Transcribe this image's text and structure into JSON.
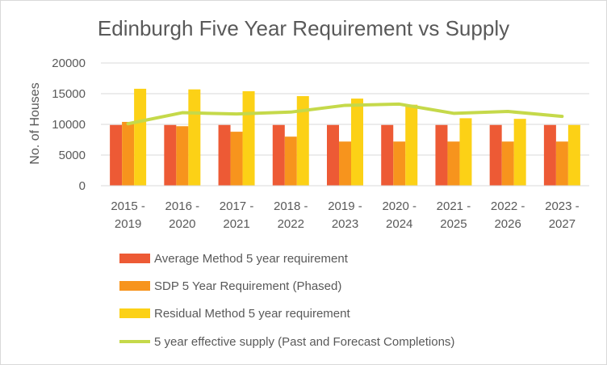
{
  "chart_data": {
    "type": "bar",
    "title": "Edinburgh Five Year Requirement vs Supply",
    "xlabel": "",
    "ylabel": "No. of Houses",
    "ylim": [
      0,
      20000
    ],
    "yticks": [
      0,
      5000,
      10000,
      15000,
      20000
    ],
    "grid": true,
    "legend_position": "bottom",
    "categories": [
      [
        "2015 -",
        "2019"
      ],
      [
        "2016 -",
        "2020"
      ],
      [
        "2017 -",
        "2021"
      ],
      [
        "2018 -",
        "2022"
      ],
      [
        "2019 -",
        "2023"
      ],
      [
        "2020 -",
        "2024"
      ],
      [
        "2021 -",
        "2025"
      ],
      [
        "2022 -",
        "2026"
      ],
      [
        "2023 -",
        "2027"
      ]
    ],
    "series": [
      {
        "name": "Average Method 5 year requirement",
        "type": "bar",
        "color": "#ed5a35",
        "values": [
          9900,
          9900,
          9900,
          9900,
          9900,
          9900,
          9900,
          9900,
          9900
        ]
      },
      {
        "name": "SDP 5 Year Requirement (Phased)",
        "type": "bar",
        "color": "#f7941d",
        "values": [
          10400,
          9700,
          8800,
          8000,
          7200,
          7200,
          7200,
          7200,
          7200
        ]
      },
      {
        "name": "Residual Method 5 year requirement",
        "type": "bar",
        "color": "#fcd116",
        "values": [
          15800,
          15700,
          15400,
          14600,
          14200,
          13200,
          11000,
          10900,
          9900
        ]
      },
      {
        "name": "5 year effective supply (Past and Forecast Completions)",
        "type": "line",
        "color": "#c5d94a",
        "values": [
          10100,
          11900,
          11700,
          12000,
          13100,
          13300,
          11800,
          12100,
          11300
        ]
      }
    ]
  }
}
